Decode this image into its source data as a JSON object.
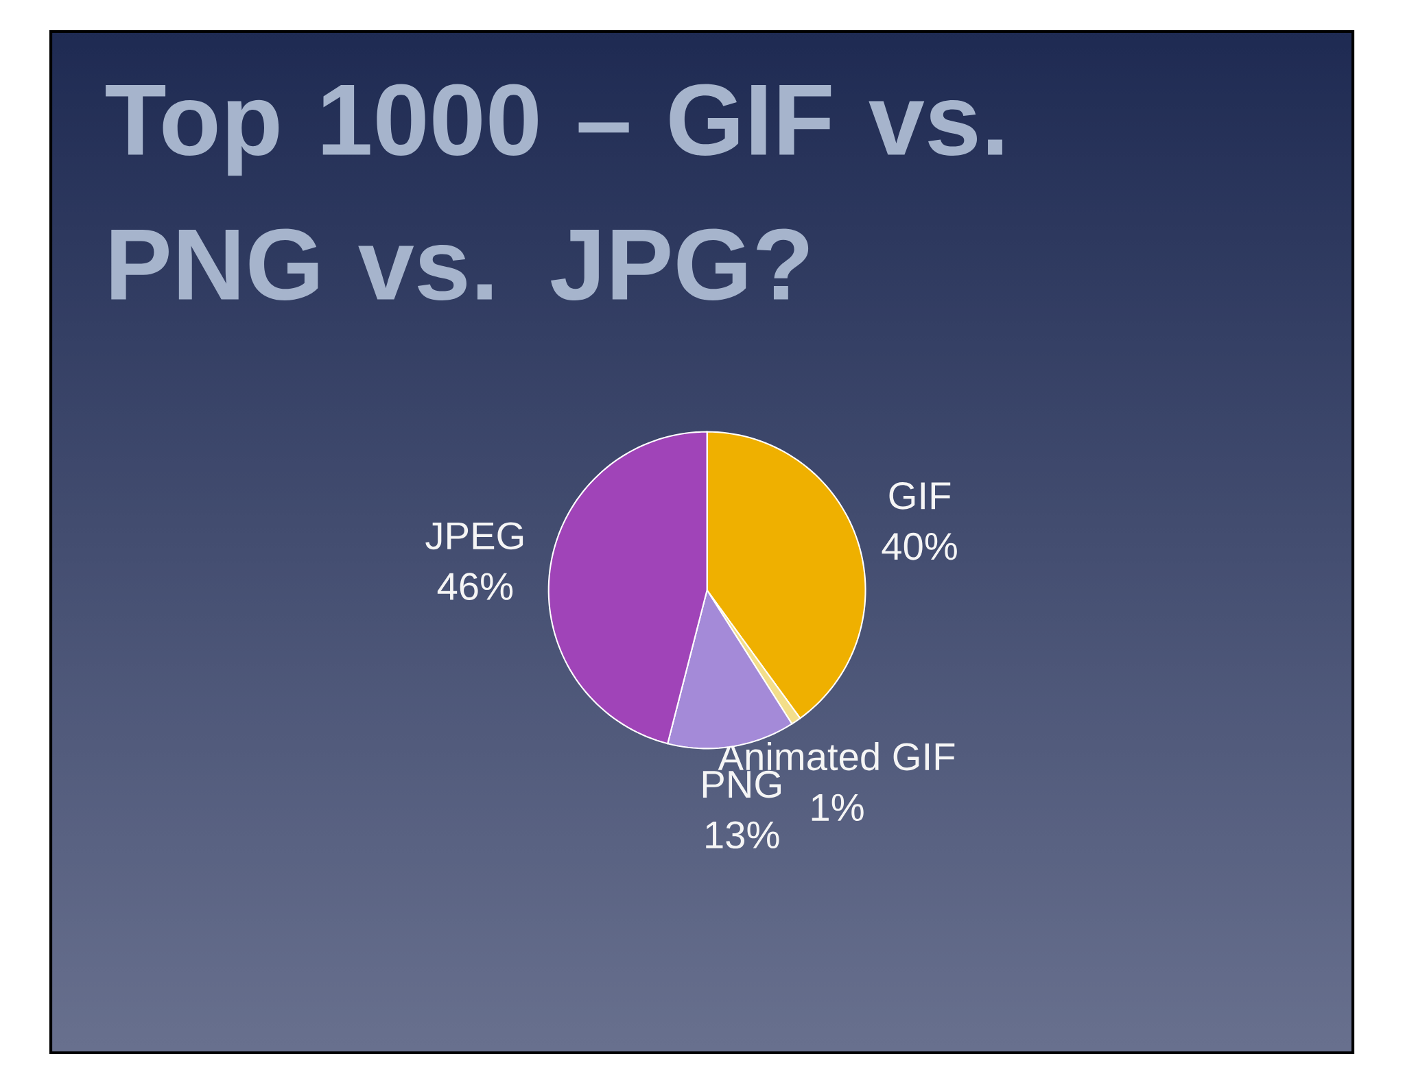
{
  "chart_data": {
    "type": "pie",
    "title": "Top 1000 – GIF vs. PNG vs. JPG?",
    "categories": [
      "GIF",
      "Animated GIF",
      "PNG",
      "JPEG"
    ],
    "values": [
      40,
      1,
      13,
      46
    ],
    "value_labels": [
      "40%",
      "1%",
      "13%",
      "46%"
    ],
    "colors": [
      "#efb000",
      "#f3de8a",
      "#a48ad8",
      "#a044b8"
    ]
  }
}
